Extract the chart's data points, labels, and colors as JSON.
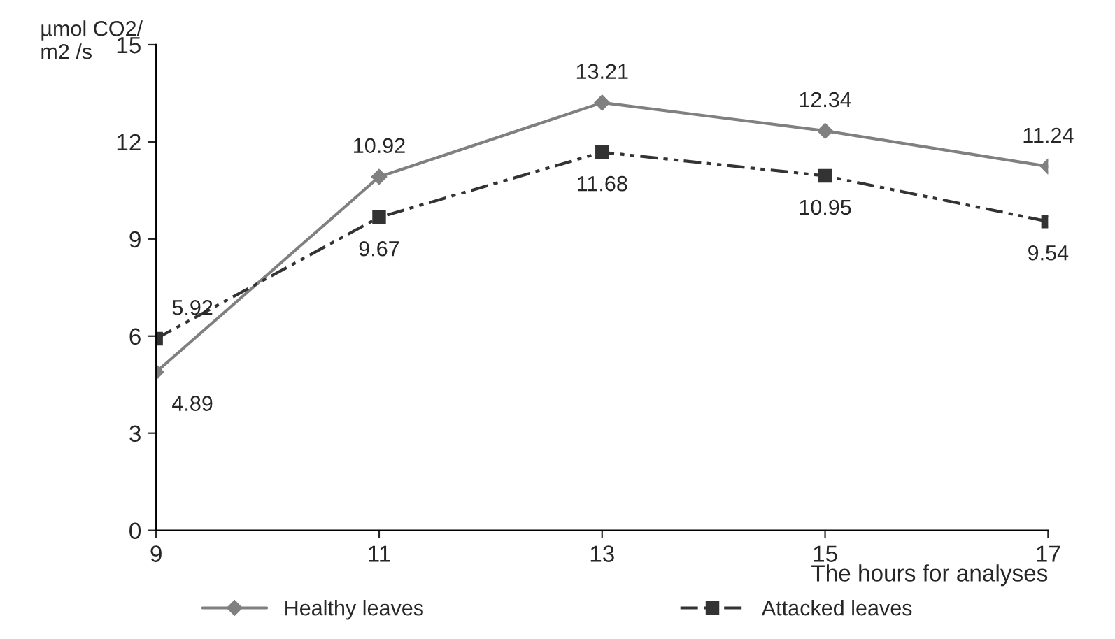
{
  "chart_data": {
    "type": "line",
    "x": [
      9,
      11,
      13,
      15,
      17
    ],
    "xlim": [
      9,
      17
    ],
    "xticks": [
      9,
      11,
      13,
      15,
      17
    ],
    "ylim": [
      0,
      15
    ],
    "yticks": [
      0,
      3,
      6,
      9,
      12,
      15
    ],
    "ylabel": "µmol CO2/\nm2 /s",
    "xlabel": "The hours for analyses",
    "data_labels": true,
    "grid": false,
    "legend": "bottom",
    "series": [
      {
        "name": "Healthy leaves",
        "color": "#808080",
        "marker": "diamond",
        "line_style": "solid",
        "values": [
          4.89,
          10.92,
          13.21,
          12.34,
          11.24
        ]
      },
      {
        "name": "Attacked leaves",
        "color": "#333333",
        "marker": "square",
        "line_style": "dashed",
        "values": [
          5.92,
          9.67,
          11.68,
          10.95,
          9.54
        ]
      }
    ]
  }
}
